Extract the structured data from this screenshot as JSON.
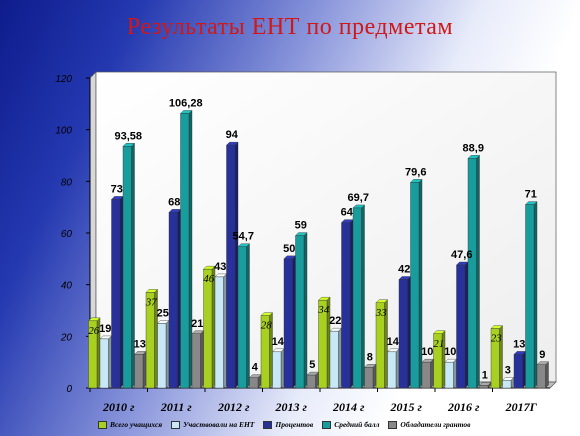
{
  "title": "Результаты ЕНТ по предметам",
  "chart_data": {
    "type": "bar",
    "categories": [
      "2010 г",
      "2011 г",
      "2012 г",
      "2013 г",
      "2014 г",
      "2015 г",
      "2016 г",
      "2017Г"
    ],
    "ylim": [
      0,
      120
    ],
    "yticks": [
      0,
      20,
      40,
      60,
      80,
      100,
      120
    ],
    "grid": false,
    "legend_position": "bottom",
    "series": [
      {
        "name": "Всего учащихся",
        "color": "#a8d020",
        "values": [
          26,
          37,
          46,
          28,
          34,
          33,
          21,
          23
        ],
        "labels": [
          "26",
          "37",
          "46",
          "28",
          "34",
          "33",
          "21",
          "23"
        ]
      },
      {
        "name": "Участвовали на ЕНТ",
        "color": "#c8e8f8",
        "values": [
          19,
          25,
          43,
          14,
          22,
          14,
          10,
          3
        ],
        "labels": [
          "19",
          "25",
          "43",
          "14",
          "22",
          "14",
          "10",
          "3"
        ]
      },
      {
        "name": "Процентов",
        "color": "#28309a",
        "values": [
          73,
          68,
          94,
          50,
          64,
          42,
          47.6,
          13
        ],
        "labels": [
          "73",
          "68",
          "94",
          "50",
          "64",
          "42",
          "47,6",
          "13"
        ]
      },
      {
        "name": "Средний балл",
        "color": "#189c9c",
        "values": [
          93.58,
          106.28,
          54.7,
          59,
          69.7,
          79.6,
          88.9,
          71
        ],
        "labels": [
          "93,58",
          "106,28",
          "54,7",
          "59",
          "69,7",
          "79,6",
          "88,9",
          "71"
        ]
      },
      {
        "name": "Обладатели грантов",
        "color": "#888888",
        "values": [
          13,
          21,
          4,
          5,
          8,
          10,
          1,
          9
        ],
        "labels": [
          "13",
          "21",
          "4",
          "5",
          "8",
          "10",
          "1",
          "9"
        ]
      }
    ]
  }
}
